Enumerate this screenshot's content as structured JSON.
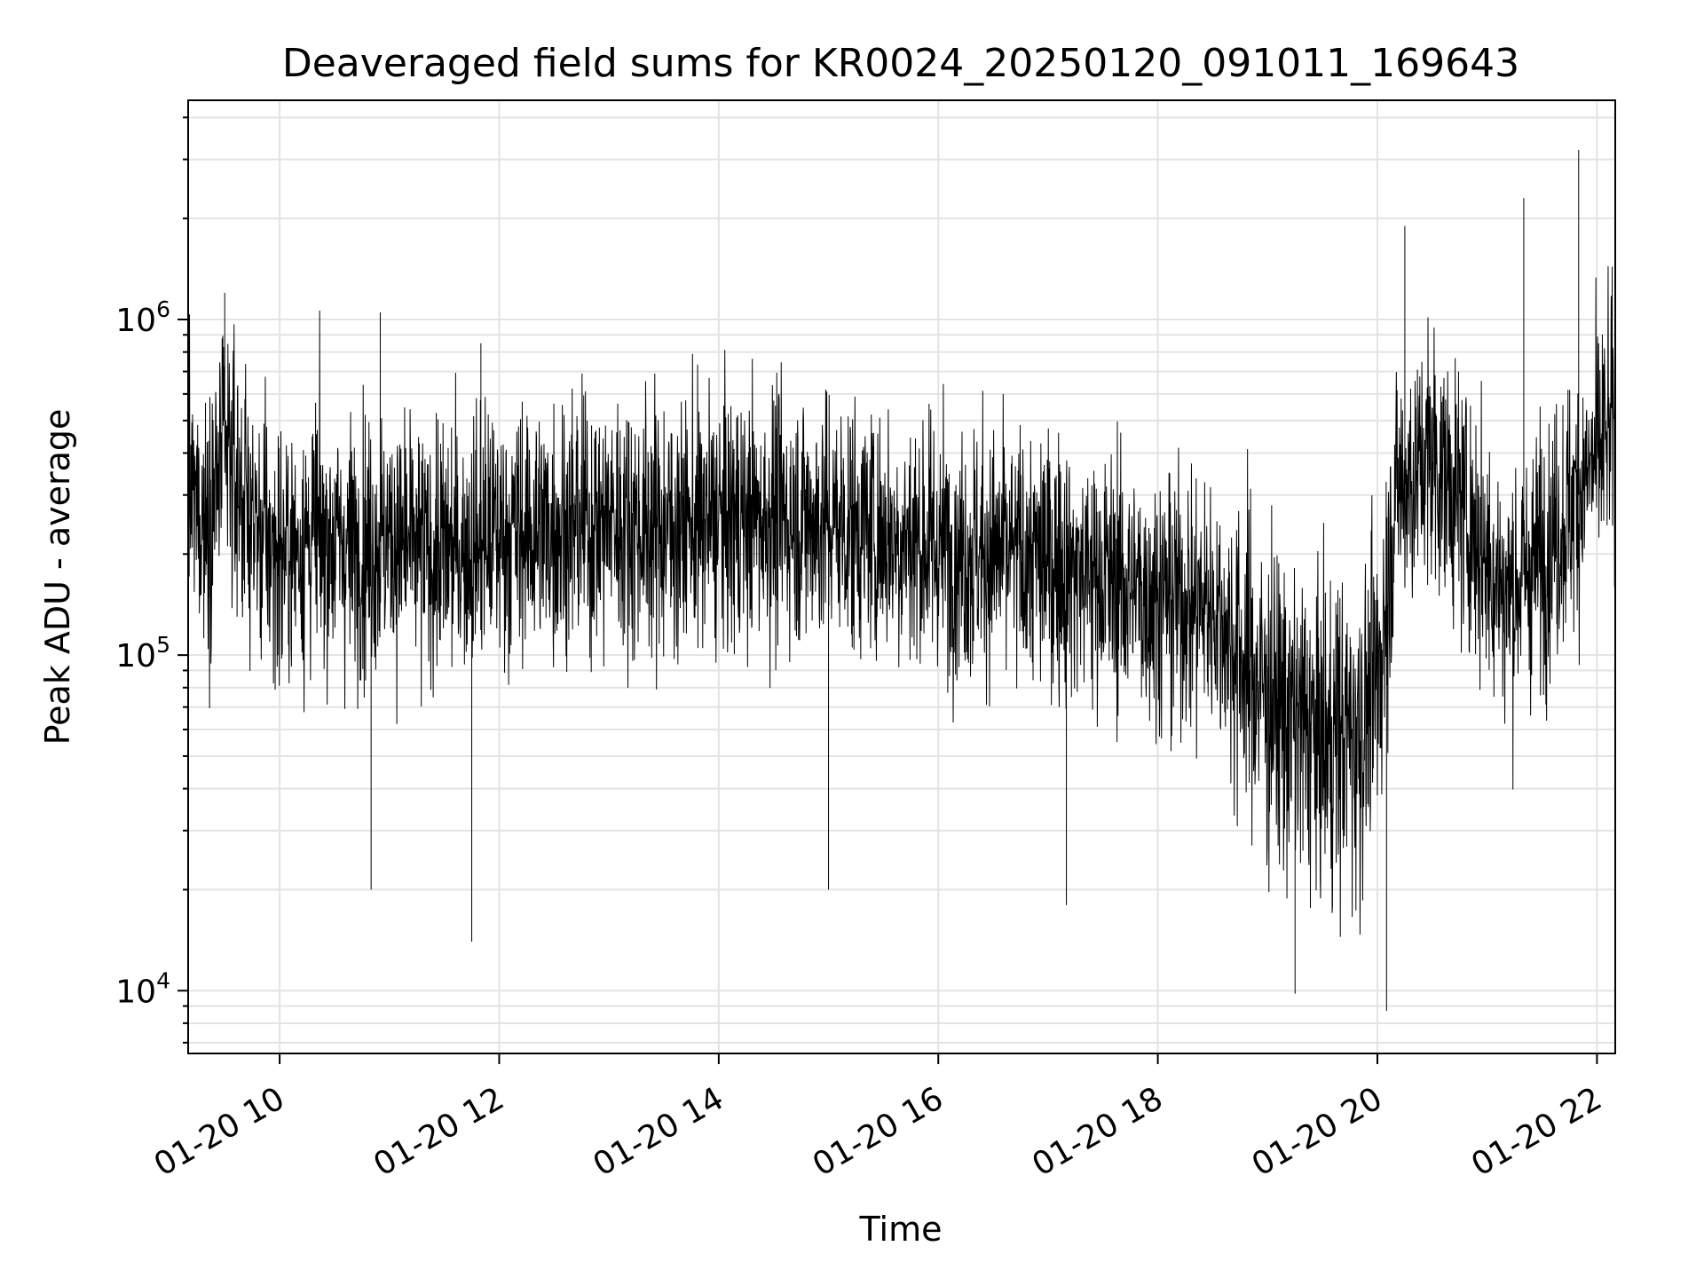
{
  "chart_data": {
    "type": "line",
    "title": "Deaveraged field sums for KR0024_20250120_091011_169643",
    "xlabel": "Time",
    "ylabel": "Peak ADU - average",
    "yscale": "log",
    "xlim": [
      "2025-01-20T09:10",
      "2025-01-20T22:10"
    ],
    "ylim": [
      6500,
      4500000
    ],
    "grid": true,
    "line_color": "#000000",
    "x_ticks": [
      {
        "value": "2025-01-20T10:00",
        "label": "01-20 10"
      },
      {
        "value": "2025-01-20T12:00",
        "label": "01-20 12"
      },
      {
        "value": "2025-01-20T14:00",
        "label": "01-20 14"
      },
      {
        "value": "2025-01-20T16:00",
        "label": "01-20 16"
      },
      {
        "value": "2025-01-20T18:00",
        "label": "01-20 18"
      },
      {
        "value": "2025-01-20T20:00",
        "label": "01-20 20"
      },
      {
        "value": "2025-01-20T22:00",
        "label": "01-20 22"
      }
    ],
    "y_ticks": [
      {
        "value": 10000,
        "base": "10",
        "exp": "4"
      },
      {
        "value": 100000,
        "base": "10",
        "exp": "5"
      },
      {
        "value": 1000000,
        "base": "10",
        "exp": "6"
      }
    ],
    "series": [
      {
        "values": [
          [
            "2025-01-20T09:10",
            300000
          ],
          [
            "2025-01-20T09:20",
            250000
          ],
          [
            "2025-01-20T09:30",
            400000
          ],
          [
            "2025-01-20T09:40",
            300000
          ],
          [
            "2025-01-20T09:50",
            220000
          ],
          [
            "2025-01-20T10:00",
            200000
          ],
          [
            "2025-01-20T10:20",
            230000
          ],
          [
            "2025-01-20T10:40",
            210000
          ],
          [
            "2025-01-20T11:00",
            220000
          ],
          [
            "2025-01-20T11:20",
            200000
          ],
          [
            "2025-01-20T11:40",
            210000
          ],
          [
            "2025-01-20T12:00",
            230000
          ],
          [
            "2025-01-20T12:30",
            240000
          ],
          [
            "2025-01-20T13:00",
            250000
          ],
          [
            "2025-01-20T13:30",
            240000
          ],
          [
            "2025-01-20T14:00",
            250000
          ],
          [
            "2025-01-20T14:30",
            260000
          ],
          [
            "2025-01-20T15:00",
            250000
          ],
          [
            "2025-01-20T15:30",
            230000
          ],
          [
            "2025-01-20T16:00",
            210000
          ],
          [
            "2025-01-20T16:30",
            200000
          ],
          [
            "2025-01-20T17:00",
            190000
          ],
          [
            "2025-01-20T17:30",
            170000
          ],
          [
            "2025-01-20T18:00",
            150000
          ],
          [
            "2025-01-20T18:30",
            140000
          ],
          [
            "2025-01-20T18:50",
            90000
          ],
          [
            "2025-01-20T19:10",
            65000
          ],
          [
            "2025-01-20T19:30",
            55000
          ],
          [
            "2025-01-20T19:50",
            60000
          ],
          [
            "2025-01-20T20:00",
            80000
          ],
          [
            "2025-01-20T20:10",
            300000
          ],
          [
            "2025-01-20T20:30",
            400000
          ],
          [
            "2025-01-20T20:50",
            250000
          ],
          [
            "2025-01-20T21:10",
            150000
          ],
          [
            "2025-01-20T21:30",
            200000
          ],
          [
            "2025-01-20T21:50",
            300000
          ],
          [
            "2025-01-20T22:10",
            500000
          ]
        ],
        "peaks": [
          [
            "2025-01-20T09:30",
            1200000
          ],
          [
            "2025-01-20T10:55",
            1050000
          ],
          [
            "2025-01-20T11:50",
            850000
          ],
          [
            "2025-01-20T20:15",
            1900000
          ],
          [
            "2025-01-20T21:20",
            2300000
          ],
          [
            "2025-01-20T21:50",
            3200000
          ]
        ],
        "dips": [
          [
            "2025-01-20T11:45",
            14000
          ],
          [
            "2025-01-20T19:15",
            9800
          ],
          [
            "2025-01-20T20:05",
            8700
          ],
          [
            "2025-01-20T17:10",
            18000
          ],
          [
            "2025-01-20T10:50",
            20000
          ],
          [
            "2025-01-20T15:00",
            20000
          ]
        ]
      }
    ]
  }
}
